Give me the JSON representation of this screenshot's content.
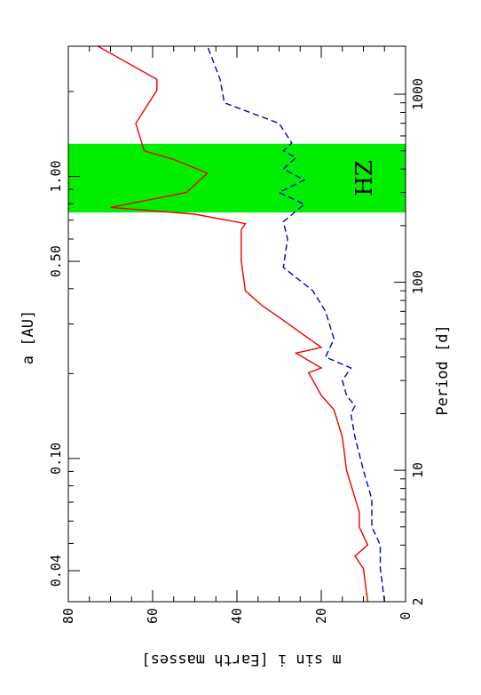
{
  "chart_data": {
    "type": "line",
    "orientation": "rotated-90-clockwise",
    "x_axis_bottom": {
      "label": "Period [d]",
      "scale": "log",
      "range": [
        2,
        1800
      ],
      "ticks": [
        {
          "value": 2,
          "label": "2"
        },
        {
          "value": 10,
          "label": "10"
        },
        {
          "value": 100,
          "label": "100"
        },
        {
          "value": 1000,
          "label": "1000"
        }
      ]
    },
    "x_axis_top": {
      "label": "a [AU]",
      "scale": "log",
      "ticks": [
        {
          "value": 0.04,
          "label": "0.04"
        },
        {
          "value": 0.1,
          "label": "0.10"
        },
        {
          "value": 0.5,
          "label": "0.50"
        },
        {
          "value": 1.0,
          "label": "1.00"
        }
      ]
    },
    "y_axis": {
      "label": "m sin i [Earth masses]",
      "range": [
        0,
        80
      ],
      "ticks": [
        0,
        20,
        40,
        60,
        80
      ]
    },
    "habitable_zone": {
      "label": "HZ",
      "period_range": [
        235,
        545
      ],
      "color": "#00ee00"
    },
    "series": [
      {
        "style": "solid",
        "color": "#ee0000",
        "x": [
          2,
          3,
          3.5,
          4,
          5,
          6,
          10,
          15,
          21,
          25,
          33,
          35,
          42,
          45,
          65,
          75,
          90,
          130,
          190,
          205,
          230,
          250,
          300,
          380,
          450,
          500,
          700,
          1050,
          1200,
          1800
        ],
        "y": [
          9,
          10,
          12,
          9,
          11,
          11,
          14,
          15,
          17,
          20,
          23,
          20,
          26,
          20,
          30,
          34,
          38,
          39,
          39,
          38,
          50,
          70,
          52,
          47,
          55,
          62,
          64,
          59,
          59,
          73
        ]
      },
      {
        "style": "dashed",
        "color": "#0000cc",
        "x": [
          2,
          3,
          4,
          5,
          7,
          10,
          15,
          20,
          22,
          25,
          30,
          35,
          40,
          50,
          70,
          90,
          120,
          170,
          210,
          260,
          300,
          350,
          400,
          460,
          500,
          550,
          700,
          900,
          1200,
          1800
        ],
        "y": [
          5,
          6,
          6,
          8,
          8,
          10,
          12,
          13,
          12,
          14,
          15,
          13,
          19,
          17,
          19,
          22,
          29,
          28,
          29,
          24,
          30,
          24,
          29,
          26,
          29,
          27,
          30,
          43,
          44,
          47
        ]
      }
    ]
  }
}
